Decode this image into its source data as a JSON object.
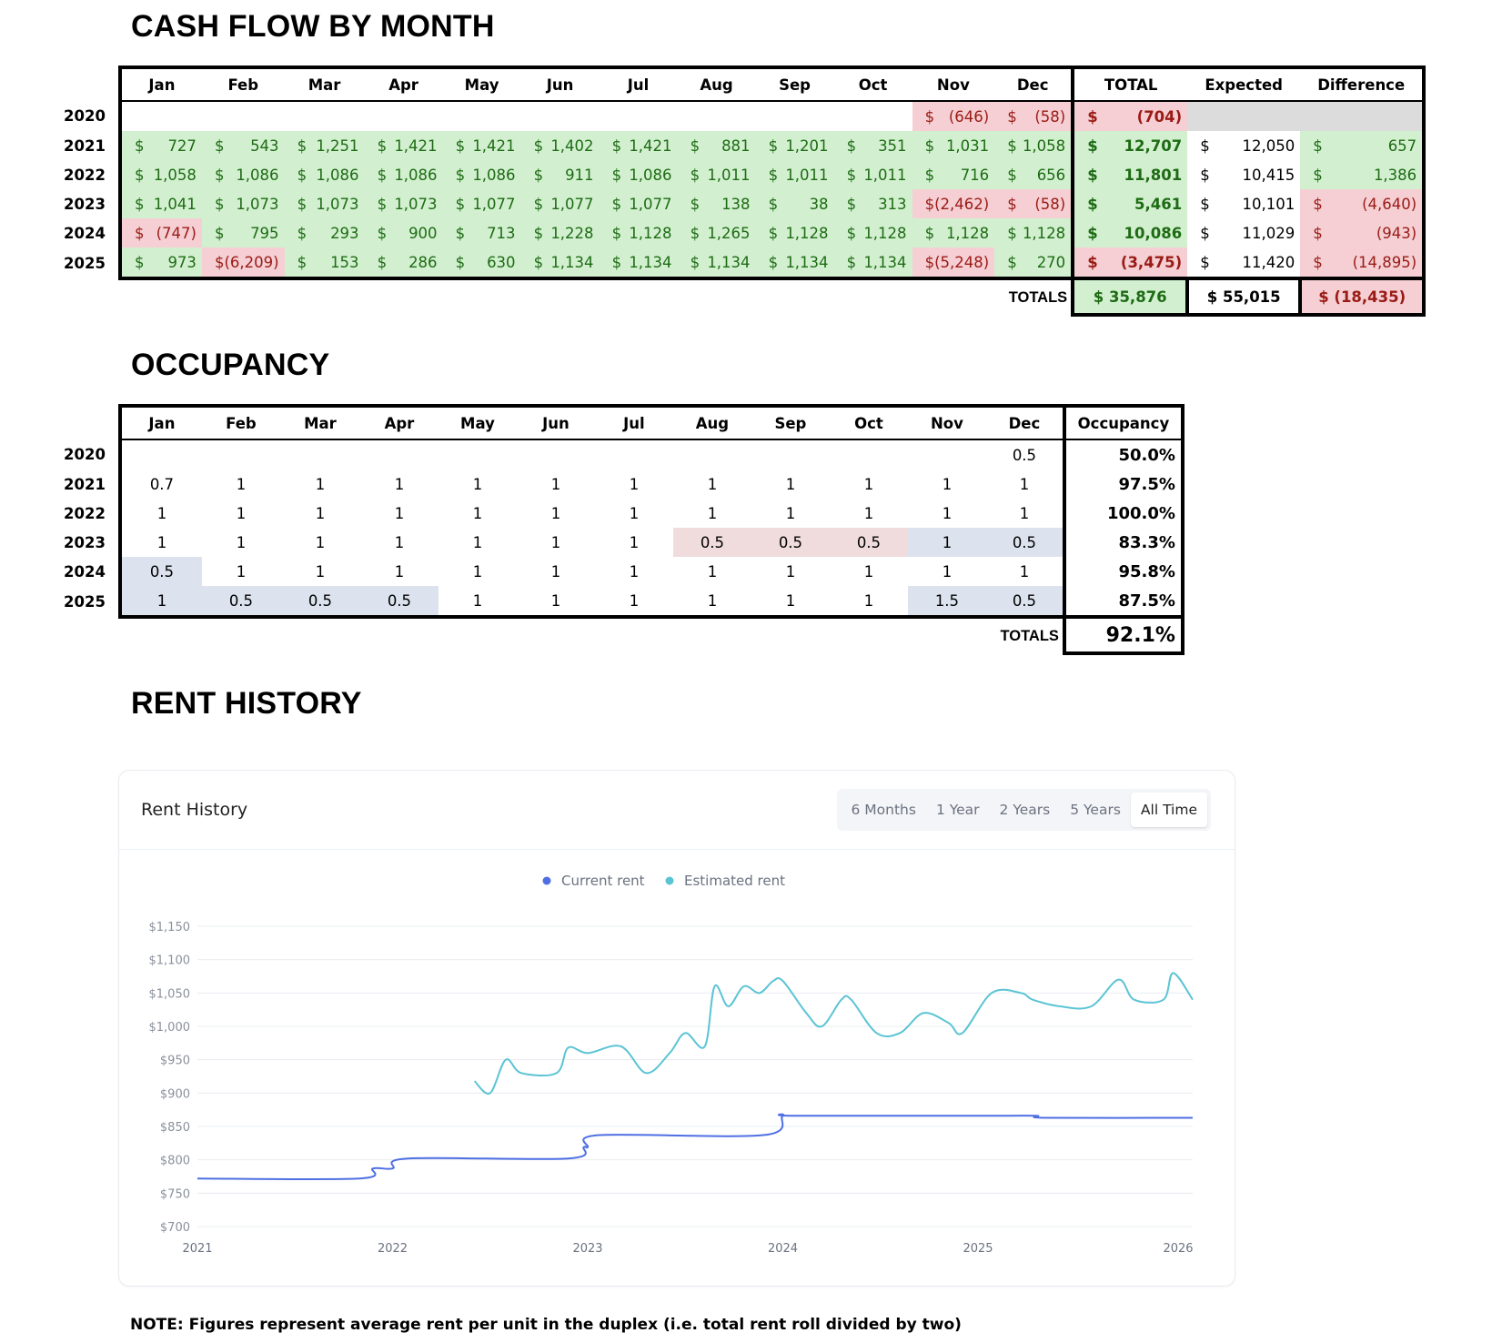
{
  "cashflow": {
    "title": "CASH FLOW BY MONTH",
    "months": [
      "Jan",
      "Feb",
      "Mar",
      "Apr",
      "May",
      "Jun",
      "Jul",
      "Aug",
      "Sep",
      "Oct",
      "Nov",
      "Dec"
    ],
    "total_headers": [
      "TOTAL",
      "Expected",
      "Difference"
    ],
    "rows": [
      {
        "year": "2020",
        "cells": [
          null,
          null,
          null,
          null,
          null,
          null,
          null,
          null,
          null,
          null,
          "(646)",
          "(58)"
        ],
        "cls": [
          "",
          "",
          "",
          "",
          "",
          "",
          "",
          "",
          "",
          "",
          "r",
          "r"
        ],
        "total": "(704)",
        "total_cls": "r",
        "expected": "",
        "expected_cls": "gy",
        "difference": "",
        "difference_cls": "gy"
      },
      {
        "year": "2021",
        "cells": [
          "727",
          "543",
          "1,251",
          "1,421",
          "1,421",
          "1,402",
          "1,421",
          "881",
          "1,201",
          "351",
          "1,031",
          "1,058"
        ],
        "cls": [
          "g",
          "g",
          "g",
          "g",
          "g",
          "g",
          "g",
          "g",
          "g",
          "g",
          "g",
          "g"
        ],
        "total": "12,707",
        "total_cls": "g",
        "expected": "12,050",
        "expected_cls": "",
        "difference": "657",
        "difference_cls": "g"
      },
      {
        "year": "2022",
        "cells": [
          "1,058",
          "1,086",
          "1,086",
          "1,086",
          "1,086",
          "911",
          "1,086",
          "1,011",
          "1,011",
          "1,011",
          "716",
          "656"
        ],
        "cls": [
          "g",
          "g",
          "g",
          "g",
          "g",
          "g",
          "g",
          "g",
          "g",
          "g",
          "g",
          "g"
        ],
        "total": "11,801",
        "total_cls": "g",
        "expected": "10,415",
        "expected_cls": "",
        "difference": "1,386",
        "difference_cls": "g"
      },
      {
        "year": "2023",
        "cells": [
          "1,041",
          "1,073",
          "1,073",
          "1,073",
          "1,077",
          "1,077",
          "1,077",
          "138",
          "38",
          "313",
          "(2,462)",
          "(58)"
        ],
        "cls": [
          "g",
          "g",
          "g",
          "g",
          "g",
          "g",
          "g",
          "g",
          "g",
          "g",
          "r",
          "r"
        ],
        "total": "5,461",
        "total_cls": "g",
        "expected": "10,101",
        "expected_cls": "",
        "difference": "(4,640)",
        "difference_cls": "r"
      },
      {
        "year": "2024",
        "cells": [
          "(747)",
          "795",
          "293",
          "900",
          "713",
          "1,228",
          "1,128",
          "1,265",
          "1,128",
          "1,128",
          "1,128",
          "1,128"
        ],
        "cls": [
          "r",
          "g",
          "g",
          "g",
          "g",
          "g",
          "g",
          "g",
          "g",
          "g",
          "g",
          "g"
        ],
        "total": "10,086",
        "total_cls": "g",
        "expected": "11,029",
        "expected_cls": "",
        "difference": "(943)",
        "difference_cls": "r"
      },
      {
        "year": "2025",
        "cells": [
          "973",
          "(6,209)",
          "153",
          "286",
          "630",
          "1,134",
          "1,134",
          "1,134",
          "1,134",
          "1,134",
          "(5,248)",
          "270"
        ],
        "cls": [
          "g",
          "r",
          "g",
          "g",
          "g",
          "g",
          "g",
          "g",
          "g",
          "g",
          "r",
          "g"
        ],
        "total": "(3,475)",
        "total_cls": "r",
        "expected": "11,420",
        "expected_cls": "",
        "difference": "(14,895)",
        "difference_cls": "r"
      }
    ],
    "totals_label": "TOTALS",
    "totals": {
      "total": "$ 35,876",
      "expected": "$ 55,015",
      "difference": "$ (18,435)"
    },
    "currency": "$"
  },
  "occupancy": {
    "title": "OCCUPANCY",
    "months": [
      "Jan",
      "Feb",
      "Mar",
      "Apr",
      "May",
      "Jun",
      "Jul",
      "Aug",
      "Sep",
      "Oct",
      "Nov",
      "Dec"
    ],
    "pct_header": "Occupancy",
    "rows": [
      {
        "year": "2020",
        "cells": [
          "",
          "",
          "",
          "",
          "",
          "",
          "",
          "",
          "",
          "",
          "",
          "0.5"
        ],
        "cls": [
          "",
          "",
          "",
          "",
          "",
          "",
          "",
          "",
          "",
          "",
          "",
          ""
        ],
        "pct": "50.0%"
      },
      {
        "year": "2021",
        "cells": [
          "0.7",
          "1",
          "1",
          "1",
          "1",
          "1",
          "1",
          "1",
          "1",
          "1",
          "1",
          "1"
        ],
        "cls": [
          "",
          "",
          "",
          "",
          "",
          "",
          "",
          "",
          "",
          "",
          "",
          ""
        ],
        "pct": "97.5%"
      },
      {
        "year": "2022",
        "cells": [
          "1",
          "1",
          "1",
          "1",
          "1",
          "1",
          "1",
          "1",
          "1",
          "1",
          "1",
          "1"
        ],
        "cls": [
          "",
          "",
          "",
          "",
          "",
          "",
          "",
          "",
          "",
          "",
          "",
          ""
        ],
        "pct": "100.0%"
      },
      {
        "year": "2023",
        "cells": [
          "1",
          "1",
          "1",
          "1",
          "1",
          "1",
          "1",
          "0.5",
          "0.5",
          "0.5",
          "1",
          "0.5"
        ],
        "cls": [
          "",
          "",
          "",
          "",
          "",
          "",
          "",
          "pk",
          "pk",
          "pk",
          "bl",
          "bl"
        ],
        "pct": "83.3%"
      },
      {
        "year": "2024",
        "cells": [
          "0.5",
          "1",
          "1",
          "1",
          "1",
          "1",
          "1",
          "1",
          "1",
          "1",
          "1",
          "1"
        ],
        "cls": [
          "bl",
          "",
          "",
          "",
          "",
          "",
          "",
          "",
          "",
          "",
          "",
          ""
        ],
        "pct": "95.8%"
      },
      {
        "year": "2025",
        "cells": [
          "1",
          "0.5",
          "0.5",
          "0.5",
          "1",
          "1",
          "1",
          "1",
          "1",
          "1",
          "1.5",
          "0.5"
        ],
        "cls": [
          "bl",
          "bl",
          "bl",
          "bl",
          "",
          "",
          "",
          "",
          "",
          "",
          "bl",
          "bl"
        ],
        "pct": "87.5%"
      }
    ],
    "totals_label": "TOTALS",
    "total_pct": "92.1%"
  },
  "rent_history": {
    "section_title": "RENT HISTORY",
    "card_title": "Rent History",
    "ranges": [
      "6 Months",
      "1 Year",
      "2 Years",
      "5 Years",
      "All Time"
    ],
    "active_range": "All Time"
  },
  "chart_data": {
    "type": "line",
    "legend_position": "top-center",
    "grid": true,
    "ylim": [
      700,
      1150
    ],
    "y_ticks": [
      "$1,150",
      "$1,100",
      "$1,050",
      "$1,000",
      "$950",
      "$900",
      "$850",
      "$800",
      "$750",
      "$700"
    ],
    "x_ticks": [
      "2021",
      "2022",
      "2023",
      "2024",
      "2025",
      "2026"
    ],
    "xlim": [
      2021.0,
      2026.1
    ],
    "colors": {
      "current": "#4f6fe3",
      "estimated": "#5bc4d4"
    },
    "series": [
      {
        "name": "Current rent",
        "color": "#4f6fe3",
        "x": [
          2021.0,
          2021.83,
          2021.9,
          2022.0,
          2022.08,
          2022.9,
          2022.98,
          2023.0,
          2023.06,
          2023.9,
          2024.0,
          2024.06,
          2024.95,
          2025.1,
          2025.3,
          2025.35,
          2026.1
        ],
        "y": [
          772,
          772,
          787,
          787,
          802,
          802,
          819,
          819,
          837,
          837,
          866,
          866,
          866,
          866,
          866,
          863,
          863
        ]
      },
      {
        "name": "Estimated rent",
        "color": "#5bc4d4",
        "x": [
          2022.42,
          2022.5,
          2022.58,
          2022.66,
          2022.84,
          2022.9,
          2023.0,
          2023.17,
          2023.3,
          2023.42,
          2023.5,
          2023.6,
          2023.65,
          2023.72,
          2023.8,
          2023.88,
          2023.95,
          2024.0,
          2024.12,
          2024.2,
          2024.3,
          2024.35,
          2024.48,
          2024.6,
          2024.72,
          2024.85,
          2024.92,
          2025.07,
          2025.22,
          2025.28,
          2025.42,
          2025.58,
          2025.72,
          2025.8,
          2025.95,
          2026.0,
          2026.1
        ],
        "y": [
          918,
          900,
          950,
          930,
          930,
          968,
          960,
          970,
          930,
          960,
          990,
          970,
          1060,
          1030,
          1060,
          1050,
          1068,
          1068,
          1020,
          1000,
          1040,
          1040,
          990,
          990,
          1020,
          1005,
          990,
          1050,
          1050,
          1040,
          1030,
          1030,
          1070,
          1040,
          1040,
          1080,
          1040
        ]
      }
    ]
  },
  "note": "NOTE: Figures represent average rent per unit in the duplex (i.e. total rent roll divided by two)"
}
